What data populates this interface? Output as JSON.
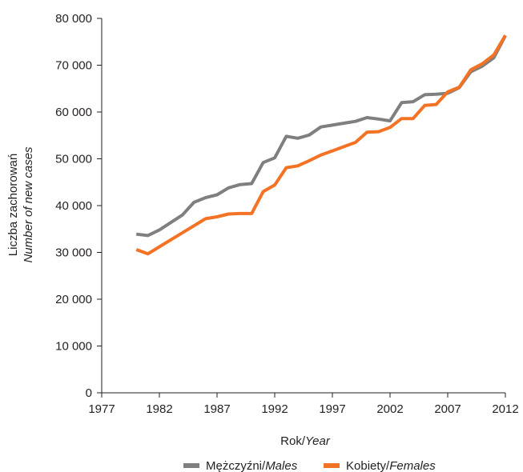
{
  "chart_data": {
    "type": "line",
    "title": "",
    "xlabel": {
      "main": "Rok/",
      "italic": "Year"
    },
    "ylabel": {
      "main": "Liczba zachorowań",
      "italic": "Number of new cases"
    },
    "xlim": [
      1977,
      2012
    ],
    "ylim": [
      0,
      80000
    ],
    "xticks": [
      1977,
      1982,
      1987,
      1992,
      1997,
      2002,
      2007,
      2012
    ],
    "yticks": [
      0,
      10000,
      20000,
      30000,
      40000,
      50000,
      60000,
      70000,
      80000
    ],
    "ytick_labels": [
      "0",
      "10 000",
      "20 000",
      "30 000",
      "40 000",
      "50 000",
      "60 000",
      "70 000",
      "80 000"
    ],
    "grid": false,
    "legend_position": "bottom",
    "x": [
      1980,
      1981,
      1982,
      1983,
      1984,
      1985,
      1986,
      1987,
      1988,
      1989,
      1990,
      1991,
      1992,
      1993,
      1994,
      1995,
      1996,
      1997,
      1998,
      1999,
      2000,
      2001,
      2002,
      2003,
      2004,
      2005,
      2006,
      2007,
      2008,
      2009,
      2010,
      2011,
      2012
    ],
    "series": [
      {
        "name": "Mężczyźni/",
        "name_italic": "Males",
        "color": "#7f7f7f",
        "values": [
          33900,
          33600,
          34800,
          36400,
          38000,
          40700,
          41700,
          42300,
          43800,
          44500,
          44700,
          49200,
          50200,
          54800,
          54400,
          55100,
          56800,
          57200,
          57600,
          58000,
          58800,
          58500,
          58100,
          62000,
          62200,
          63700,
          63800,
          64000,
          65200,
          68600,
          69800,
          71600,
          76300
        ]
      },
      {
        "name": "Kobiety/",
        "name_italic": "Females",
        "color": "#f47224",
        "values": [
          30600,
          29700,
          31200,
          32700,
          34200,
          35700,
          37200,
          37600,
          38200,
          38300,
          38300,
          43000,
          44400,
          48100,
          48500,
          49600,
          50800,
          51700,
          52600,
          53500,
          55700,
          55800,
          56700,
          58600,
          58600,
          61400,
          61600,
          64300,
          65300,
          69000,
          70300,
          72200,
          76400
        ]
      }
    ]
  }
}
